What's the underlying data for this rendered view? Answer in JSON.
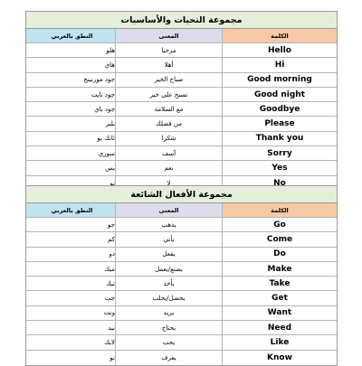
{
  "table1": {
    "title": "مجموعة التحيات والأساسيات",
    "headers": {
      "pron": "النطق بالعربي",
      "meaning": "المعنى",
      "word": "الكلمة"
    },
    "rows": [
      {
        "pron": "هلو",
        "meaning": "مرحبا",
        "word": "Hello"
      },
      {
        "pron": "هاي",
        "meaning": "أهلا",
        "word": "Hi"
      },
      {
        "pron": "جود مورنينج",
        "meaning": "صباح الخير",
        "word": "Good morning"
      },
      {
        "pron": "جود نايت",
        "meaning": "تصبح على خير",
        "word": "Good night"
      },
      {
        "pron": "جود باي",
        "meaning": "مع السلامة",
        "word": "Goodbye"
      },
      {
        "pron": "بليز",
        "meaning": "من فضلك",
        "word": "Please"
      },
      {
        "pron": "ثانك يو",
        "meaning": "شكرا",
        "word": "Thank you"
      },
      {
        "pron": "سوري",
        "meaning": "آسف",
        "word": "Sorry"
      },
      {
        "pron": "يس",
        "meaning": "نعم",
        "word": "Yes"
      },
      {
        "pron": "نو",
        "meaning": "لا",
        "word": "No"
      }
    ]
  },
  "table2": {
    "title": "مجموعة الأفعال الشائعة",
    "headers": {
      "pron": "النطق بالعربي",
      "meaning": "المعنى",
      "word": "الكلمة"
    },
    "rows": [
      {
        "pron": "جو",
        "meaning": "يذهب",
        "word": "Go"
      },
      {
        "pron": "كم",
        "meaning": "يأتي",
        "word": "Come"
      },
      {
        "pron": "دو",
        "meaning": "يفعل",
        "word": "Do"
      },
      {
        "pron": "ميك",
        "meaning": "يصنع/يعمل",
        "word": "Make"
      },
      {
        "pron": "تيك",
        "meaning": "يأخذ",
        "word": "Take"
      },
      {
        "pron": "جت",
        "meaning": "يحصل/يجلب",
        "word": "Get"
      },
      {
        "pron": "ونت",
        "meaning": "يريد",
        "word": "Want"
      },
      {
        "pron": "نيد",
        "meaning": "يحتاج",
        "word": "Need"
      },
      {
        "pron": "لايك",
        "meaning": "يحب",
        "word": "Like"
      },
      {
        "pron": "نو",
        "meaning": "يعرف",
        "word": "Know"
      }
    ]
  }
}
